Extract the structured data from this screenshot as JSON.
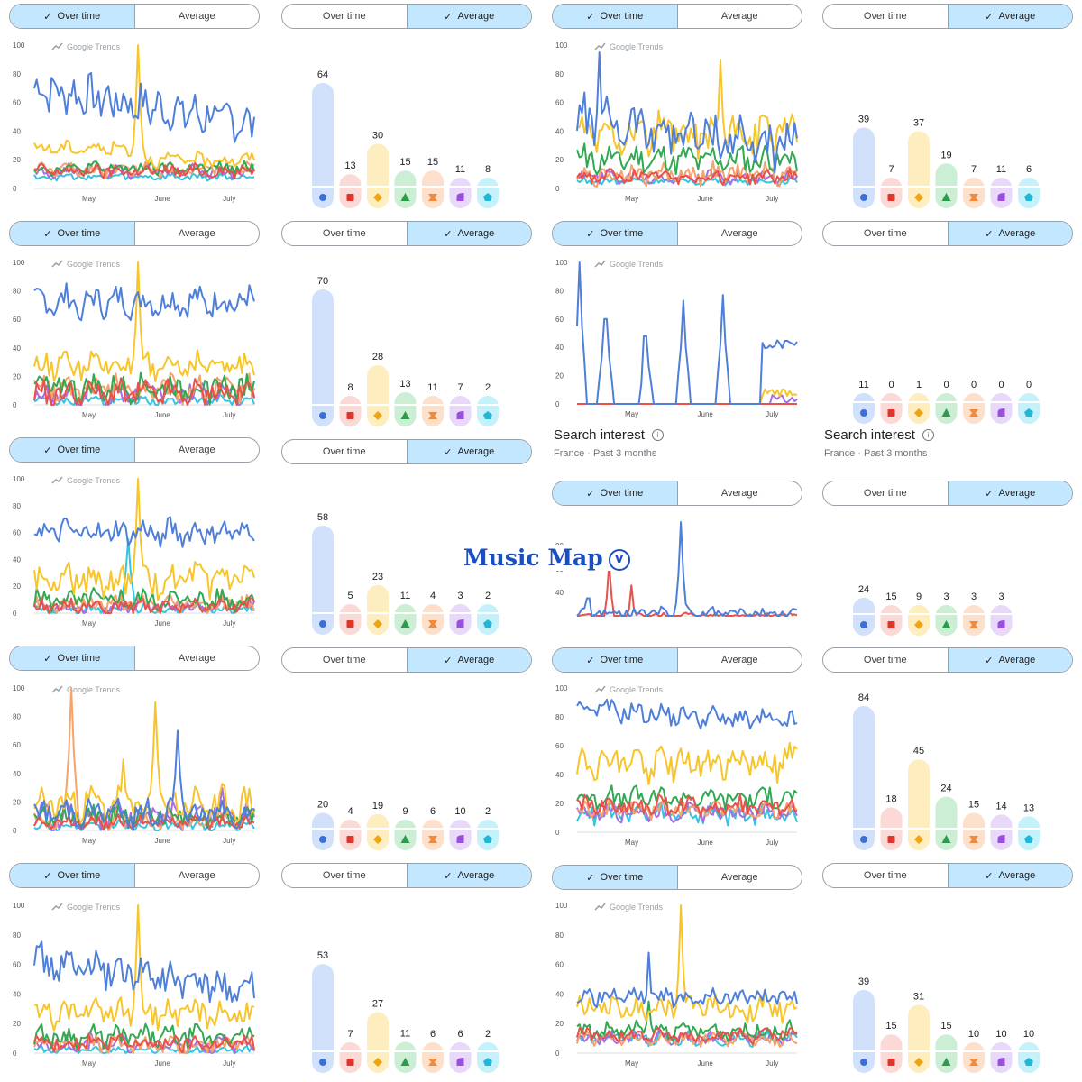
{
  "toggle": {
    "over_time": "Over time",
    "average": "Average",
    "check": "✓"
  },
  "branding": {
    "trends": "Google Trends",
    "watermark": "Music Map",
    "watermark_badge": "v"
  },
  "search_interest": {
    "title": "Search interest",
    "subtitle": "France · Past 3 months"
  },
  "colors": {
    "series": [
      "#4e7fd9",
      "#e8524a",
      "#f7c52b",
      "#32a852",
      "#f5a36b",
      "#a86ee0",
      "#35c4e0"
    ],
    "pale": [
      "#d2e1fb",
      "#fbd9d6",
      "#fdedbf",
      "#cbeed4",
      "#fde0cc",
      "#e8d9fb",
      "#c5f1fb"
    ],
    "icon": [
      "#3b6fd6",
      "#e0352b",
      "#f0a412",
      "#2a9c4a",
      "#f08a3c",
      "#9a4fe0",
      "#22b7d6"
    ],
    "selected_toggle": "#c2e7ff"
  },
  "chart_data": [
    {
      "type": "line",
      "row": 0,
      "x_ticks": [
        "May",
        "June",
        "July"
      ],
      "y_ticks": [
        "0",
        "20",
        "40",
        "60",
        "80",
        "100"
      ],
      "ylim": [
        0,
        100
      ],
      "series": [
        {
          "base": 70,
          "trend": -25,
          "amp": 12,
          "freq": 0.9
        },
        {
          "base": 12,
          "amp": 4
        },
        {
          "base": 28,
          "amp": 4,
          "spike": {
            "at": 0.47,
            "val": 100
          },
          "step": {
            "at": 0.47,
            "to": 20
          }
        },
        {
          "base": 14,
          "amp": 4
        },
        {
          "base": 13,
          "amp": 4
        },
        {
          "base": 12,
          "amp": 4
        },
        {
          "base": 8,
          "amp": 2
        }
      ]
    },
    {
      "type": "bar",
      "row": 0,
      "values": [
        64,
        13,
        30,
        15,
        15,
        11,
        8
      ],
      "labels": [
        "64",
        "13",
        "30",
        "15",
        "15",
        "11",
        "8"
      ]
    },
    {
      "type": "line",
      "row": 0,
      "x_ticks": [
        "May",
        "June",
        "July"
      ],
      "y_ticks": [
        "0",
        "20",
        "40",
        "60",
        "80",
        "100"
      ],
      "ylim": [
        0,
        100
      ],
      "series": [
        {
          "base": 48,
          "trend": -20,
          "amp": 14,
          "spike": {
            "at": 0.1,
            "val": 95
          }
        },
        {
          "base": 8,
          "amp": 4
        },
        {
          "base": 38,
          "amp": 12,
          "spike": {
            "at": 0.65,
            "val": 90
          }
        },
        {
          "base": 20,
          "amp": 8
        },
        {
          "base": 10,
          "amp": 6
        },
        {
          "base": 8,
          "amp": 4
        },
        {
          "base": 5,
          "amp": 2
        }
      ]
    },
    {
      "type": "bar",
      "row": 0,
      "values": [
        39,
        7,
        37,
        19,
        7,
        11,
        6
      ],
      "labels": [
        "39",
        "7",
        "37",
        "19",
        "7",
        "11",
        "6"
      ]
    },
    {
      "type": "line",
      "row": 1,
      "x_ticks": [
        "May",
        "June",
        "July"
      ],
      "y_ticks": [
        "0",
        "20",
        "40",
        "60",
        "80",
        "100"
      ],
      "ylim": [
        0,
        100
      ],
      "series": [
        {
          "base": 72,
          "amp": 9
        },
        {
          "base": 8,
          "amp": 8
        },
        {
          "base": 28,
          "amp": 8,
          "spike": {
            "at": 0.47,
            "val": 100
          }
        },
        {
          "base": 12,
          "amp": 8
        },
        {
          "base": 11,
          "amp": 8
        },
        {
          "base": 8,
          "amp": 7
        },
        {
          "base": 3,
          "amp": 3
        }
      ]
    },
    {
      "type": "bar",
      "row": 1,
      "values": [
        70,
        8,
        28,
        13,
        11,
        7,
        2
      ],
      "labels": [
        "70",
        "8",
        "28",
        "13",
        "11",
        "7",
        "2"
      ]
    },
    {
      "type": "line",
      "row": 1,
      "x_ticks": [
        "May",
        "June",
        "July"
      ],
      "y_ticks": [
        "0",
        "20",
        "40",
        "60",
        "80",
        "100"
      ],
      "ylim": [
        0,
        100
      ],
      "series": [
        {
          "base": 0,
          "amp": 0,
          "spikes": [
            [
              0.01,
              100
            ],
            [
              0.13,
              60
            ],
            [
              0.31,
              48
            ],
            [
              0.48,
              73
            ],
            [
              0.66,
              77
            ]
          ],
          "tail": {
            "from": 0.84,
            "val": 42
          }
        },
        {
          "base": 0,
          "amp": 0
        },
        {
          "base": 0,
          "amp": 0,
          "tail": {
            "from": 0.84,
            "val": 8
          }
        },
        {
          "base": 0,
          "amp": 0
        },
        {
          "base": 0,
          "amp": 0
        },
        {
          "base": 0,
          "amp": 0,
          "tail": {
            "from": 0.88,
            "val": 4
          }
        },
        {
          "base": 0,
          "amp": 0
        }
      ]
    },
    {
      "type": "bar",
      "row": 1,
      "values": [
        11,
        0,
        1,
        0,
        0,
        0,
        0
      ],
      "labels": [
        "11",
        "0",
        "1",
        "0",
        "0",
        "0",
        "0"
      ]
    },
    {
      "type": "line",
      "row": 2,
      "x_ticks": [
        "May",
        "June",
        "July"
      ],
      "y_ticks": [
        "0",
        "20",
        "40",
        "60",
        "80",
        "100"
      ],
      "ylim": [
        0,
        100
      ],
      "series": [
        {
          "base": 60,
          "amp": 8
        },
        {
          "base": 5,
          "amp": 5
        },
        {
          "base": 24,
          "amp": 10,
          "spike": {
            "at": 0.47,
            "val": 100
          }
        },
        {
          "base": 10,
          "amp": 7
        },
        {
          "base": 6,
          "amp": 6
        },
        {
          "base": 5,
          "amp": 5
        },
        {
          "base": 3,
          "amp": 3,
          "spike": {
            "at": 0.43,
            "val": 55
          }
        }
      ]
    },
    {
      "type": "bar",
      "row": 2,
      "values": [
        58,
        5,
        23,
        11,
        4,
        3,
        2
      ],
      "labels": [
        "58",
        "5",
        "23",
        "11",
        "4",
        "3",
        "2"
      ]
    },
    {
      "type": "line",
      "row": 2,
      "x_ticks": [],
      "y_ticks": [
        "40",
        "60",
        "80"
      ],
      "ylim": [
        20,
        100
      ],
      "series": [
        {
          "base": 22,
          "amp": 4,
          "spikes": [
            [
              0.47,
              100
            ],
            [
              0.05,
              35
            ]
          ]
        },
        {
          "base": 20,
          "amp": 2,
          "spikes": [
            [
              0.15,
              65
            ],
            [
              0.25,
              46
            ]
          ]
        }
      ]
    },
    {
      "type": "bar",
      "row": 2,
      "values": [
        24,
        15,
        9,
        3,
        3,
        3
      ],
      "labels": [
        "24",
        "15",
        "9",
        "3",
        "3",
        "3"
      ]
    },
    {
      "type": "line",
      "row": 3,
      "x_ticks": [
        "May",
        "June",
        "July"
      ],
      "y_ticks": [
        "0",
        "20",
        "40",
        "60",
        "80",
        "100"
      ],
      "ylim": [
        0,
        100
      ],
      "series": [
        {
          "base": 12,
          "amp": 8,
          "spike": {
            "at": 0.65,
            "val": 70
          }
        },
        {
          "base": 6,
          "amp": 4
        },
        {
          "base": 18,
          "amp": 10,
          "spikes": [
            [
              0.55,
              90
            ],
            [
              0.4,
              50
            ]
          ]
        },
        {
          "base": 10,
          "amp": 6
        },
        {
          "base": 8,
          "amp": 6,
          "spike": {
            "at": 0.17,
            "val": 100
          }
        },
        {
          "base": 10,
          "amp": 8,
          "spike": {
            "at": 0.85,
            "val": 30
          }
        },
        {
          "base": 3,
          "amp": 3
        }
      ]
    },
    {
      "type": "bar",
      "row": 3,
      "values": [
        20,
        4,
        19,
        9,
        6,
        10,
        2
      ],
      "labels": [
        "20",
        "4",
        "19",
        "9",
        "6",
        "10",
        "2"
      ]
    },
    {
      "type": "line",
      "row": 3,
      "x_ticks": [
        "May",
        "June",
        "July"
      ],
      "y_ticks": [
        "0",
        "20",
        "40",
        "60",
        "80",
        "100"
      ],
      "ylim": [
        0,
        100
      ],
      "series": [
        {
          "base": 86,
          "trend": -10,
          "amp": 6
        },
        {
          "base": 18,
          "amp": 6
        },
        {
          "base": 48,
          "amp": 10
        },
        {
          "base": 24,
          "amp": 6
        },
        {
          "base": 15,
          "amp": 5
        },
        {
          "base": 14,
          "amp": 5
        },
        {
          "base": 13,
          "amp": 6
        }
      ]
    },
    {
      "type": "bar",
      "row": 3,
      "values": [
        84,
        18,
        45,
        24,
        15,
        14,
        13
      ],
      "labels": [
        "84",
        "18",
        "45",
        "24",
        "15",
        "14",
        "13"
      ]
    },
    {
      "type": "line",
      "row": 4,
      "x_ticks": [
        "May",
        "June",
        "July"
      ],
      "y_ticks": [
        "0",
        "20",
        "40",
        "60",
        "80",
        "100"
      ],
      "ylim": [
        0,
        100
      ],
      "series": [
        {
          "base": 62,
          "trend": -20,
          "amp": 10
        },
        {
          "base": 7,
          "amp": 5
        },
        {
          "base": 27,
          "amp": 8,
          "spike": {
            "at": 0.47,
            "val": 100
          }
        },
        {
          "base": 11,
          "amp": 6
        },
        {
          "base": 6,
          "amp": 5
        },
        {
          "base": 6,
          "amp": 5
        },
        {
          "base": 2,
          "amp": 2
        }
      ]
    },
    {
      "type": "bar",
      "row": 4,
      "values": [
        53,
        7,
        27,
        11,
        6,
        6,
        2
      ],
      "labels": [
        "53",
        "7",
        "27",
        "11",
        "6",
        "6",
        "2"
      ]
    },
    {
      "type": "line",
      "row": 4,
      "x_ticks": [
        "May",
        "June",
        "July"
      ],
      "y_ticks": [
        "0",
        "20",
        "40",
        "60",
        "80",
        "100"
      ],
      "ylim": [
        0,
        100
      ],
      "series": [
        {
          "base": 38,
          "amp": 5,
          "spike": {
            "at": 0.33,
            "val": 68
          }
        },
        {
          "base": 12,
          "amp": 4
        },
        {
          "base": 30,
          "amp": 8,
          "spike": {
            "at": 0.47,
            "val": 100
          }
        },
        {
          "base": 15,
          "amp": 5,
          "spike": {
            "at": 0.33,
            "val": 35
          }
        },
        {
          "base": 10,
          "amp": 4
        },
        {
          "base": 10,
          "amp": 4
        },
        {
          "base": 10,
          "amp": 4
        }
      ]
    },
    {
      "type": "bar",
      "row": 4,
      "values": [
        39,
        15,
        31,
        15,
        10,
        10,
        10
      ],
      "labels": [
        "39",
        "15",
        "31",
        "15",
        "10",
        "10",
        "10"
      ]
    }
  ]
}
